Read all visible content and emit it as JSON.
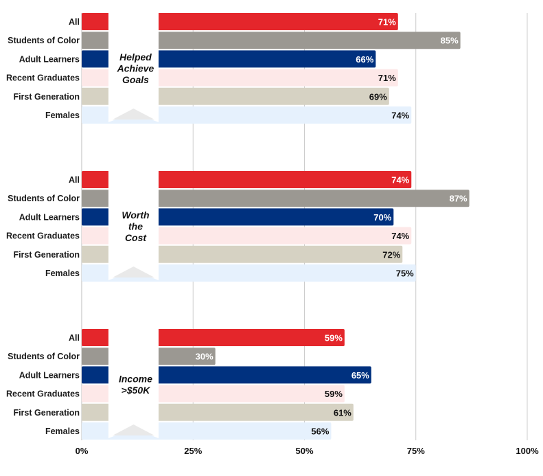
{
  "chart_data": {
    "type": "bar",
    "orientation": "horizontal",
    "xlim": [
      0,
      100
    ],
    "ticks": [
      {
        "value": 0,
        "label": "0%"
      },
      {
        "value": 25,
        "label": "25%"
      },
      {
        "value": 50,
        "label": "50%"
      },
      {
        "value": 75,
        "label": "75%"
      },
      {
        "value": 100,
        "label": "100%"
      }
    ],
    "grid": true,
    "categories": [
      "All",
      "Students of Color",
      "Adult Learners",
      "Recent Graduates",
      "First Generation",
      "Females"
    ],
    "category_colors": [
      "#e4262b",
      "#9b9892",
      "#00317f",
      "#fde8e8",
      "#d6d2c3",
      "#e6f1fd"
    ],
    "value_label_colors": [
      "#ffffff",
      "#ffffff",
      "#ffffff",
      "#111111",
      "#111111",
      "#111111"
    ],
    "groups": [
      {
        "name": "Helped Achieve Goals",
        "name_lines": [
          "Helped",
          "Achieve",
          "Goals"
        ],
        "values": [
          71,
          85,
          66,
          71,
          69,
          74
        ],
        "labels": [
          "71%",
          "85%",
          "66%",
          "71%",
          "69%",
          "74%"
        ]
      },
      {
        "name": "Worth the Cost",
        "name_lines": [
          "Worth",
          "the",
          "Cost"
        ],
        "values": [
          74,
          87,
          70,
          74,
          72,
          75
        ],
        "labels": [
          "74%",
          "87%",
          "70%",
          "74%",
          "72%",
          "75%"
        ]
      },
      {
        "name": "Income >$50K",
        "name_lines": [
          "Income",
          ">$50K"
        ],
        "values": [
          59,
          30,
          65,
          59,
          61,
          56
        ],
        "labels": [
          "59%",
          "30%",
          "65%",
          "59%",
          "61%",
          "56%"
        ]
      }
    ]
  }
}
